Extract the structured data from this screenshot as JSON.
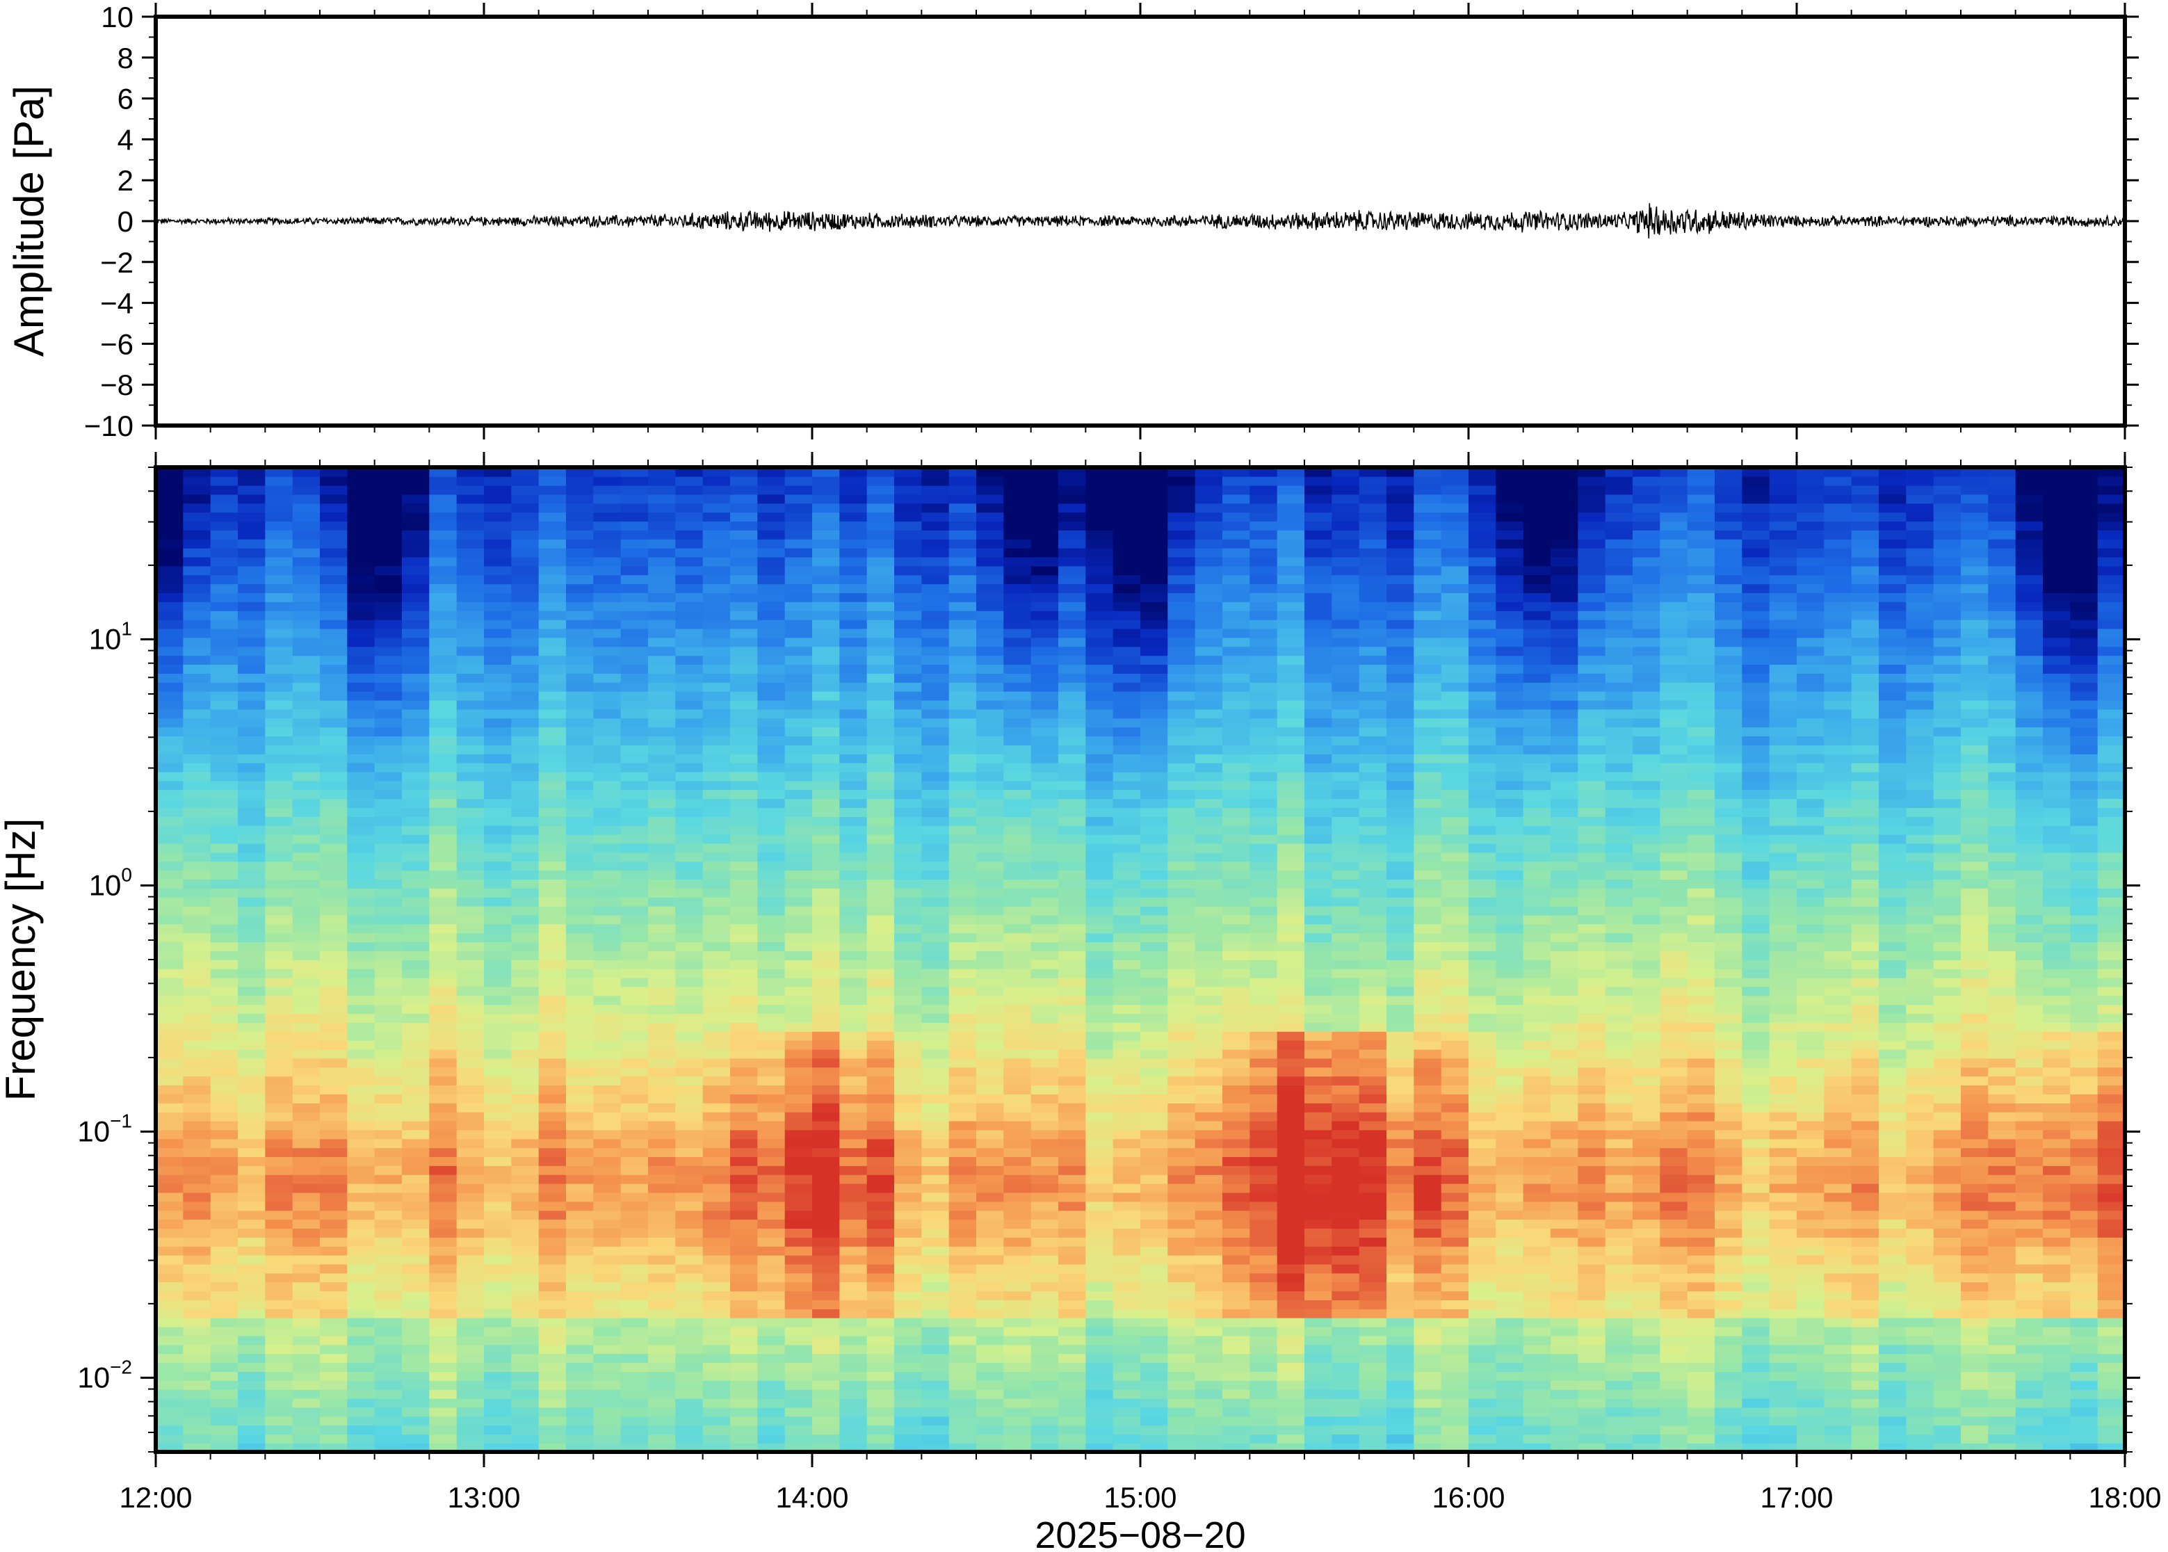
{
  "chart_data": [
    {
      "type": "line",
      "ylabel": "Amplitude [Pa]",
      "ylim": [
        -10,
        10
      ],
      "yticks": [
        10,
        8,
        6,
        4,
        2,
        0,
        -2,
        -4,
        -6,
        -8,
        -10
      ],
      "ytick_labels": [
        "10",
        "8",
        "6",
        "4",
        "2",
        "0",
        "−2",
        "−4",
        "−6",
        "−8",
        "−10"
      ],
      "xlim": [
        "12:00",
        "18:00"
      ],
      "grid": false,
      "series": [
        {
          "color": "#000000",
          "x": [
            "12:00",
            "12:30",
            "13:00",
            "13:30",
            "13:50",
            "14:00",
            "14:30",
            "15:00",
            "15:30",
            "15:40",
            "16:00",
            "16:10",
            "16:30",
            "16:32",
            "17:00",
            "17:30",
            "18:00"
          ],
          "envelope": [
            0.15,
            0.2,
            0.25,
            0.35,
            0.6,
            0.55,
            0.3,
            0.3,
            0.5,
            0.6,
            0.5,
            0.6,
            0.45,
            1.0,
            0.3,
            0.3,
            0.3
          ]
        }
      ]
    },
    {
      "type": "heatmap",
      "ylabel": "Frequency [Hz]",
      "yscale": "log",
      "ylim": [
        0.005,
        50
      ],
      "yticks": [
        0.01,
        0.1,
        1,
        10
      ],
      "ytick_labels": [
        {
          "base": "10",
          "exp": "−2"
        },
        {
          "base": "10",
          "exp": "−1"
        },
        {
          "base": "10",
          "exp": "0"
        },
        {
          "base": "10",
          "exp": "1"
        }
      ],
      "xlabel": "2025−08−20",
      "xticks": [
        "12:00",
        "13:00",
        "14:00",
        "15:00",
        "16:00",
        "17:00",
        "18:00"
      ],
      "xlim": [
        "12:00",
        "18:00"
      ],
      "colormap": "jet",
      "colorscale_note": "high power (red) near 0.03–0.2 Hz, low power (dark blue) above 10 Hz",
      "high_power_times": [
        "14:00",
        "15:30",
        "15:40",
        "17:55"
      ],
      "low_power_times": [
        "12:00",
        "12:40",
        "14:40",
        "15:00",
        "16:15",
        "17:50"
      ]
    }
  ]
}
